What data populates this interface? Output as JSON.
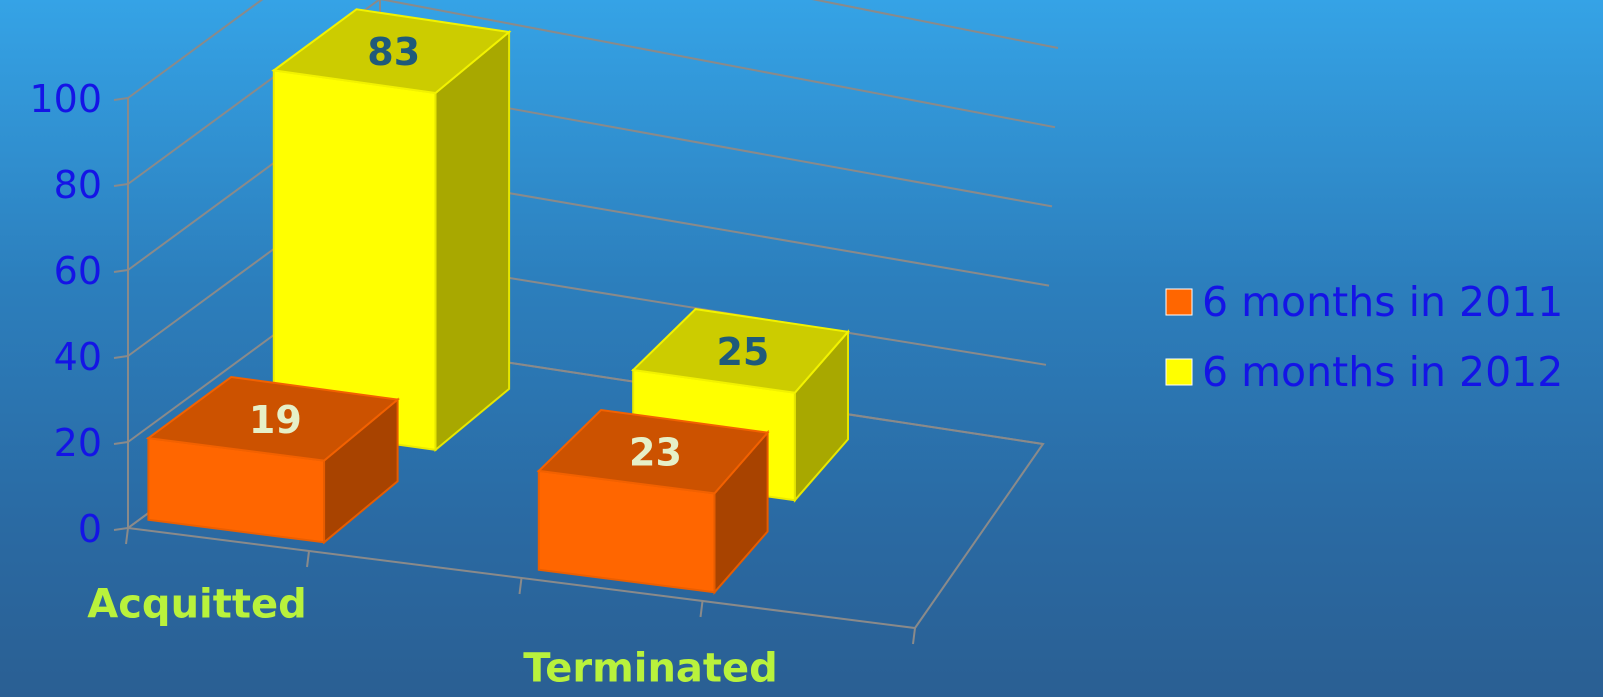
{
  "chart_data": {
    "type": "bar",
    "style": "3d-clustered-column",
    "categories": [
      "Acquitted",
      "Terminated"
    ],
    "series": [
      {
        "name": "6 months in 2011",
        "values": [
          19,
          23
        ],
        "color": "#ff6600"
      },
      {
        "name": "6 months in 2012",
        "values": [
          83,
          25
        ],
        "color": "#ffff00"
      }
    ],
    "ylim": [
      0,
      100
    ],
    "yticks": [
      "0",
      "20",
      "40",
      "60",
      "80",
      "100"
    ],
    "grid": true,
    "legend_position": "right",
    "colors": {
      "ytick": "#1414e6",
      "xtick": "#b9f23c",
      "label_on_orange": "#e6f0c8",
      "label_on_yellow": "#1f5a7a"
    }
  }
}
